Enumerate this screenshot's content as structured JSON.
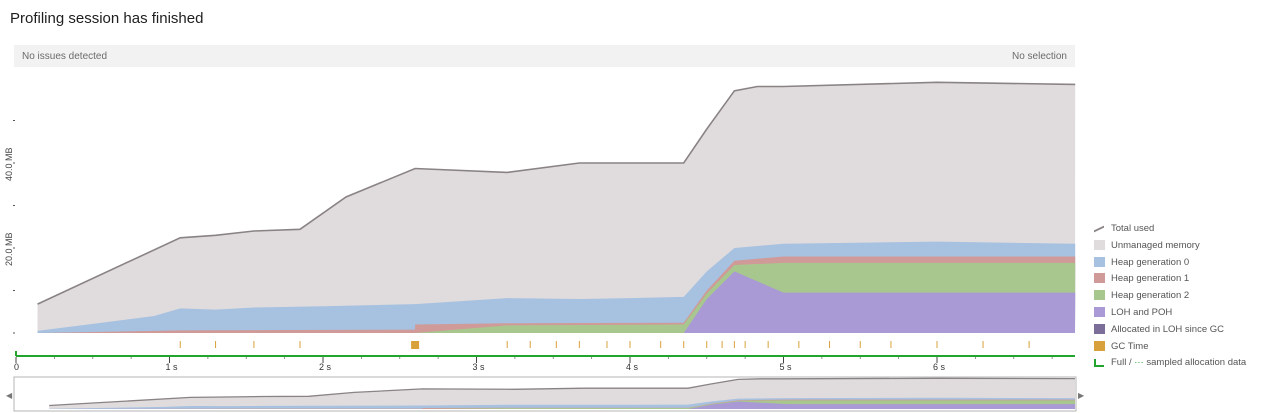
{
  "header": {
    "title": "Profiling session has finished"
  },
  "status": {
    "issues": "No issues detected",
    "selection": "No selection"
  },
  "axis": {
    "y_ticks": [
      {
        "label": "40.0 MB",
        "value": 40
      },
      {
        "label": "20.0 MB",
        "value": 20
      }
    ],
    "x_ticks": [
      {
        "label": "0",
        "value": 0
      },
      {
        "label": "1 s",
        "value": 1
      },
      {
        "label": "2 s",
        "value": 2
      },
      {
        "label": "3 s",
        "value": 3
      },
      {
        "label": "4 s",
        "value": 4
      },
      {
        "label": "5 s",
        "value": 5
      },
      {
        "label": "6 s",
        "value": 6
      }
    ]
  },
  "legend": {
    "items": [
      {
        "label": "Total used",
        "color": "#8a8384",
        "kind": "line"
      },
      {
        "label": "Unmanaged memory",
        "color": "#e0dcdd",
        "kind": "box"
      },
      {
        "label": "Heap generation 0",
        "color": "#a7c1e0",
        "kind": "box"
      },
      {
        "label": "Heap generation 1",
        "color": "#cf9a97",
        "kind": "box"
      },
      {
        "label": "Heap generation 2",
        "color": "#a8c78f",
        "kind": "box"
      },
      {
        "label": "LOH and POH",
        "color": "#a99ad6",
        "kind": "box"
      },
      {
        "label": "Allocated in LOH since GC",
        "color": "#7b6f9a",
        "kind": "box"
      },
      {
        "label": "GC Time",
        "color": "#d9a13b",
        "kind": "box"
      }
    ],
    "allocation": {
      "full": "Full /",
      "sampled": "sampled allocation data",
      "dots": "···"
    }
  },
  "scroller": {
    "left_arrow": "◀",
    "right_arrow": "▶"
  },
  "chart_data": {
    "type": "area",
    "xlabel": "",
    "ylabel": "",
    "xlim": [
      0,
      6.9
    ],
    "ylim": [
      0,
      60
    ],
    "series": [
      {
        "name": "Total used",
        "points": [
          [
            0.14,
            6.8
          ],
          [
            1.07,
            22.4
          ],
          [
            1.3,
            23
          ],
          [
            1.55,
            24
          ],
          [
            1.85,
            24.4
          ],
          [
            2.15,
            32
          ],
          [
            2.6,
            38.7
          ],
          [
            3.2,
            37.8
          ],
          [
            3.67,
            40
          ],
          [
            4.0,
            40
          ],
          [
            4.35,
            40
          ],
          [
            4.5,
            48
          ],
          [
            4.68,
            57
          ],
          [
            4.83,
            58
          ],
          [
            5.0,
            58
          ],
          [
            6.0,
            59
          ],
          [
            6.9,
            58.5
          ]
        ]
      },
      {
        "name": "Heap generation 0",
        "points": [
          [
            0.14,
            0.5
          ],
          [
            0.9,
            4
          ],
          [
            1.07,
            5.8
          ],
          [
            1.3,
            5.5
          ],
          [
            1.55,
            6
          ],
          [
            2.0,
            6.3
          ],
          [
            2.6,
            6.8
          ],
          [
            3.2,
            8.2
          ],
          [
            3.67,
            8
          ],
          [
            4.0,
            8.2
          ],
          [
            4.35,
            8.5
          ],
          [
            4.5,
            14.5
          ],
          [
            4.68,
            20
          ],
          [
            5.0,
            21
          ],
          [
            6.0,
            21.5
          ],
          [
            6.9,
            21
          ]
        ]
      },
      {
        "name": "Heap generation 1",
        "points": [
          [
            0.14,
            0
          ],
          [
            1.07,
            0.6
          ],
          [
            2.6,
            0.8
          ],
          [
            2.6,
            2
          ],
          [
            3.2,
            2.3
          ],
          [
            4.35,
            2.4
          ],
          [
            4.5,
            10
          ],
          [
            4.68,
            17
          ],
          [
            5.0,
            18
          ],
          [
            6.9,
            18
          ]
        ]
      },
      {
        "name": "Heap generation 2",
        "points": [
          [
            0.14,
            0
          ],
          [
            2.6,
            0
          ],
          [
            3.2,
            1.8
          ],
          [
            4.35,
            2.0
          ],
          [
            4.5,
            9.3
          ],
          [
            4.68,
            16
          ],
          [
            5.0,
            16.5
          ],
          [
            6.9,
            16.5
          ]
        ]
      },
      {
        "name": "LOH and POH",
        "points": [
          [
            0.14,
            0
          ],
          [
            4.35,
            0
          ],
          [
            4.5,
            8
          ],
          [
            4.68,
            14.5
          ],
          [
            5.0,
            9.5
          ],
          [
            6.9,
            9.5
          ]
        ]
      }
    ],
    "gc_times": [
      1.07,
      1.3,
      1.55,
      1.85,
      2.6,
      3.2,
      3.35,
      3.52,
      3.67,
      3.85,
      4.0,
      4.2,
      4.35,
      4.5,
      4.6,
      4.68,
      4.75,
      4.9,
      5.1,
      5.3,
      5.5,
      5.7,
      6.0,
      6.3,
      6.6
    ]
  }
}
